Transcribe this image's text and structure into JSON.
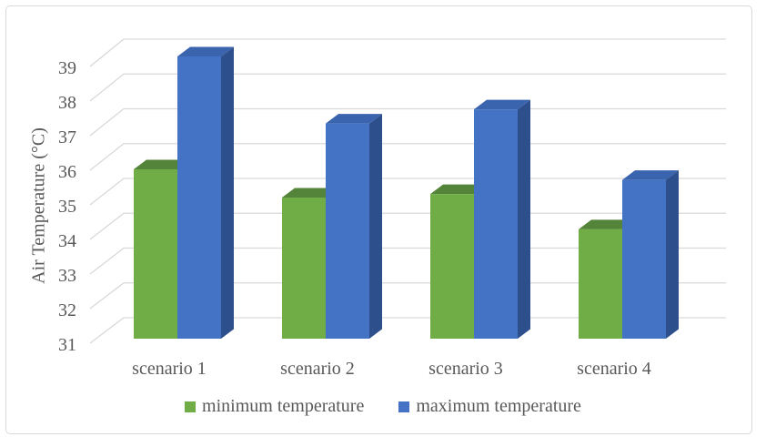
{
  "figure": {
    "background": "#ffffff",
    "border_color": "#d9d9d9"
  },
  "chart_data": {
    "type": "bar",
    "style": "3d-clustered-column",
    "title": "",
    "xlabel": "",
    "ylabel": "Air Temperature (°C)",
    "categories": [
      "scenario 1",
      "scenario 2",
      "scenario 3",
      "scenario 4"
    ],
    "series": [
      {
        "name": "minimum temperature",
        "values": [
          35.8,
          35.0,
          35.1,
          34.1
        ],
        "color": "#70AD47",
        "color_top": "#54833A",
        "color_side": "#4E7D33"
      },
      {
        "name": "maximum temperature",
        "values": [
          39.0,
          37.1,
          37.5,
          35.5
        ],
        "color": "#4472C4",
        "color_top": "#3B64AE",
        "color_side": "#2D4F8C"
      }
    ],
    "ylim": [
      31,
      39
    ],
    "y_ticks": [
      31,
      32,
      33,
      34,
      35,
      36,
      37,
      38,
      39
    ],
    "grid": true,
    "legend_position": "bottom",
    "text_color": "#595959",
    "grid_color": "#d9d9d9"
  }
}
